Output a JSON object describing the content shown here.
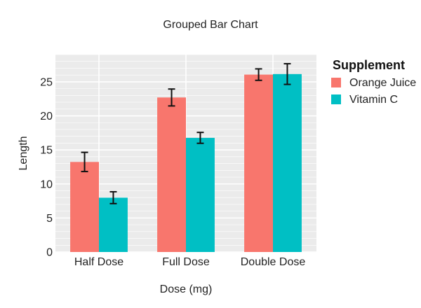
{
  "chart_data": {
    "type": "bar",
    "title": "Grouped Bar Chart",
    "xlabel": "Dose (mg)",
    "ylabel": "Length",
    "categories": [
      "Half Dose",
      "Full Dose",
      "Double Dose"
    ],
    "series": [
      {
        "name": "Orange Juice",
        "values": [
          13.23,
          22.7,
          26.06
        ],
        "error": [
          1.41,
          1.24,
          0.84
        ],
        "color": "#F8766D"
      },
      {
        "name": "Vitamin C",
        "values": [
          7.98,
          16.77,
          26.14
        ],
        "error": [
          0.87,
          0.8,
          1.52
        ],
        "color": "#00BFC4"
      }
    ],
    "ylim": [
      0,
      29
    ],
    "yticks": [
      0,
      5,
      10,
      15,
      20,
      25
    ],
    "grid": true,
    "panel_background": "#EBEBEB",
    "legend": {
      "title": "Supplement",
      "position": "right"
    }
  }
}
